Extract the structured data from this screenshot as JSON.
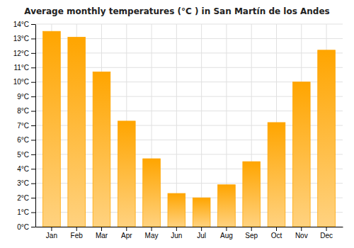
{
  "chart_data": {
    "type": "bar",
    "title": "Average monthly temperatures (°C ) in San Martín de los Andes",
    "categories": [
      "Jan",
      "Feb",
      "Mar",
      "Apr",
      "May",
      "Jun",
      "Jul",
      "Aug",
      "Sep",
      "Oct",
      "Nov",
      "Dec"
    ],
    "values": [
      13.5,
      13.1,
      10.7,
      7.3,
      4.7,
      2.3,
      2.0,
      2.9,
      4.5,
      7.2,
      10.0,
      12.2
    ],
    "color": "#FFA500",
    "ylim": [
      0,
      14
    ],
    "yticks": [
      {
        "value": 0,
        "label": "0°C"
      },
      {
        "value": 1,
        "label": "1°C"
      },
      {
        "value": 2,
        "label": "2°C"
      },
      {
        "value": 3,
        "label": "3°C"
      },
      {
        "value": 4,
        "label": "4°C"
      },
      {
        "value": 5,
        "label": "5°C"
      },
      {
        "value": 6,
        "label": "6°C"
      },
      {
        "value": 7,
        "label": "7°C"
      },
      {
        "value": 8,
        "label": "8°C"
      },
      {
        "value": 9,
        "label": "9°C"
      },
      {
        "value": 10,
        "label": "10°C"
      },
      {
        "value": 11,
        "label": "11°C"
      },
      {
        "value": 12,
        "label": "12°C"
      },
      {
        "value": 13,
        "label": "13°C"
      },
      {
        "value": 14,
        "label": "14°C"
      }
    ],
    "grid": true
  }
}
